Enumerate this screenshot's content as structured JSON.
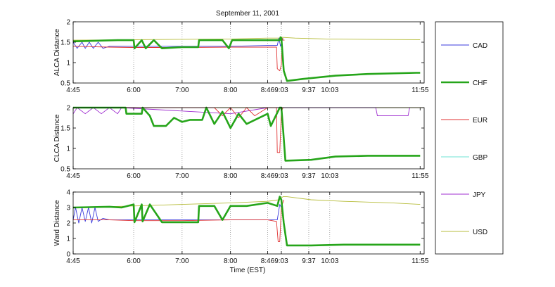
{
  "chart_data": {
    "type": "line",
    "title": "September 11, 2001",
    "xlabel": "Time (EST)",
    "x_ticks": [
      "4:45",
      "6:00",
      "7:00",
      "8:00",
      "8:46",
      "9:03",
      "9:37",
      "10:03",
      "11:55"
    ],
    "x_tick_minutes": [
      285,
      360,
      420,
      480,
      526,
      543,
      577,
      603,
      715
    ],
    "xlim": [
      285,
      720
    ],
    "legend": {
      "placement": "right",
      "entries": [
        "CAD",
        "CHF",
        "EUR",
        "GBP",
        "JPY",
        "USD"
      ]
    },
    "colors": {
      "CAD": "#3b3bdc",
      "CHF": "#26a51a",
      "EUR": "#e03030",
      "GBP": "#6fe3d6",
      "JPY": "#a030d0",
      "USD": "#b7bd3c"
    },
    "panels": [
      {
        "ylabel": "ALCA Distance",
        "ylim": [
          0.5,
          2
        ],
        "y_ticks": [
          "0.5",
          "1",
          "1.5",
          "2"
        ],
        "y_tick_values": [
          0.5,
          1,
          1.5,
          2
        ],
        "series": [
          {
            "name": "USD",
            "x": [
              285,
              360,
              420,
              480,
              526,
              540,
              543,
              560,
              600,
              650,
              715
            ],
            "y": [
              1.55,
              1.56,
              1.57,
              1.58,
              1.6,
              1.6,
              1.62,
              1.6,
              1.58,
              1.57,
              1.56
            ]
          },
          {
            "name": "CAD",
            "x": [
              285,
              290,
              296,
              300,
              305,
              310,
              316,
              322,
              330,
              360,
              420,
              480,
              526,
              538,
              540,
              542,
              545
            ],
            "y": [
              1.5,
              1.35,
              1.5,
              1.35,
              1.5,
              1.35,
              1.5,
              1.35,
              1.4,
              1.4,
              1.4,
              1.4,
              1.42,
              1.42,
              1.6,
              1.4,
              1.6
            ]
          },
          {
            "name": "EUR",
            "x": [
              285,
              330,
              360,
              420,
              480,
              526,
              537,
              538,
              541,
              543,
              544,
              545,
              547
            ],
            "y": [
              1.4,
              1.38,
              1.37,
              1.37,
              1.38,
              1.38,
              1.38,
              0.85,
              0.8,
              0.95,
              1.6,
              1.55,
              1.55
            ]
          },
          {
            "name": "CHF",
            "x": [
              285,
              340,
              355,
              360,
              361,
              370,
              375,
              385,
              395,
              420,
              440,
              441,
              460,
              470,
              478,
              482,
              526,
              541,
              542,
              543,
              546,
              550,
              570,
              610,
              650,
              710,
              715
            ],
            "y": [
              1.52,
              1.55,
              1.55,
              1.55,
              1.35,
              1.55,
              1.35,
              1.55,
              1.35,
              1.38,
              1.38,
              1.55,
              1.55,
              1.55,
              1.35,
              1.55,
              1.55,
              1.55,
              1.62,
              1.6,
              0.8,
              0.55,
              0.6,
              0.68,
              0.72,
              0.75,
              0.75
            ]
          }
        ]
      },
      {
        "ylabel": "CLCA Distance",
        "ylim": [
          0.5,
          2
        ],
        "y_ticks": [
          "0.5",
          "1",
          "1.5",
          "2"
        ],
        "y_tick_values": [
          0.5,
          1,
          1.5,
          2
        ],
        "series": [
          {
            "name": "USD",
            "x": [
              285,
              720
            ],
            "y": [
              2,
              2
            ]
          },
          {
            "name": "JPY",
            "x": [
              285,
              290,
              300,
              310,
              320,
              330,
              340,
              345,
              480,
              526,
              660,
              662,
              700,
              702
            ],
            "y": [
              1.85,
              2.0,
              1.85,
              2.0,
              1.85,
              2.0,
              1.85,
              2.0,
              1.85,
              2.0,
              2.0,
              1.8,
              1.8,
              2.0
            ]
          },
          {
            "name": "EUR",
            "x": [
              285,
              460,
              470,
              480,
              490,
              500,
              510,
              526,
              537,
              538,
              541,
              543,
              545
            ],
            "y": [
              2.0,
              2.0,
              1.8,
              2.0,
              1.75,
              2.0,
              1.8,
              2.0,
              2.0,
              0.9,
              0.9,
              1.9,
              2.0
            ]
          },
          {
            "name": "CHF",
            "x": [
              285,
              350,
              351,
              370,
              371,
              380,
              385,
              400,
              410,
              420,
              430,
              445,
              450,
              460,
              470,
              480,
              490,
              500,
              526,
              530,
              541,
              543,
              545,
              548,
              580,
              610,
              650,
              700,
              715
            ],
            "y": [
              2.0,
              2.0,
              1.85,
              1.85,
              2.0,
              1.8,
              1.55,
              1.55,
              1.75,
              1.65,
              1.7,
              1.7,
              2.0,
              1.6,
              1.9,
              1.5,
              1.85,
              1.6,
              1.85,
              1.55,
              2.0,
              2.0,
              1.5,
              0.7,
              0.72,
              0.8,
              0.82,
              0.82,
              0.82
            ]
          }
        ]
      },
      {
        "ylabel": "Ward Distance",
        "ylim": [
          0,
          4
        ],
        "y_ticks": [
          "0",
          "1",
          "2",
          "3",
          "4"
        ],
        "y_tick_values": [
          0,
          1,
          2,
          3,
          4
        ],
        "series": [
          {
            "name": "USD",
            "x": [
              285,
              360,
              420,
              480,
              526,
              540,
              545,
              550,
              580,
              620,
              680,
              715
            ],
            "y": [
              3.0,
              3.1,
              3.2,
              3.3,
              3.4,
              3.5,
              3.7,
              3.7,
              3.5,
              3.4,
              3.3,
              3.2
            ]
          },
          {
            "name": "CAD",
            "x": [
              285,
              288,
              292,
              296,
              300,
              304,
              308,
              312,
              316,
              322,
              330,
              360,
              420,
              480,
              526,
              538,
              541,
              543
            ],
            "y": [
              2.2,
              3.0,
              2.0,
              3.0,
              2.1,
              3.0,
              2.0,
              3.0,
              2.1,
              2.3,
              2.2,
              2.2,
              2.2,
              2.2,
              2.2,
              2.2,
              3.2,
              3.0
            ]
          },
          {
            "name": "EUR",
            "x": [
              285,
              330,
              360,
              420,
              480,
              526,
              537,
              539,
              541,
              543,
              546
            ],
            "y": [
              2.2,
              2.2,
              2.15,
              2.15,
              2.2,
              2.2,
              2.1,
              0.8,
              0.8,
              3.0,
              3.5
            ]
          },
          {
            "name": "CHF",
            "x": [
              285,
              330,
              345,
              360,
              361,
              370,
              371,
              380,
              395,
              420,
              440,
              441,
              460,
              470,
              480,
              500,
              526,
              538,
              541,
              543,
              546,
              550,
              580,
              620,
              660,
              700,
              715
            ],
            "y": [
              3.0,
              3.05,
              3.0,
              3.2,
              2.05,
              3.2,
              2.1,
              3.2,
              2.05,
              2.05,
              2.05,
              3.1,
              3.1,
              2.2,
              3.1,
              3.1,
              3.3,
              3.1,
              3.7,
              3.5,
              2.0,
              0.55,
              0.55,
              0.6,
              0.6,
              0.6,
              0.6
            ]
          }
        ]
      }
    ]
  }
}
